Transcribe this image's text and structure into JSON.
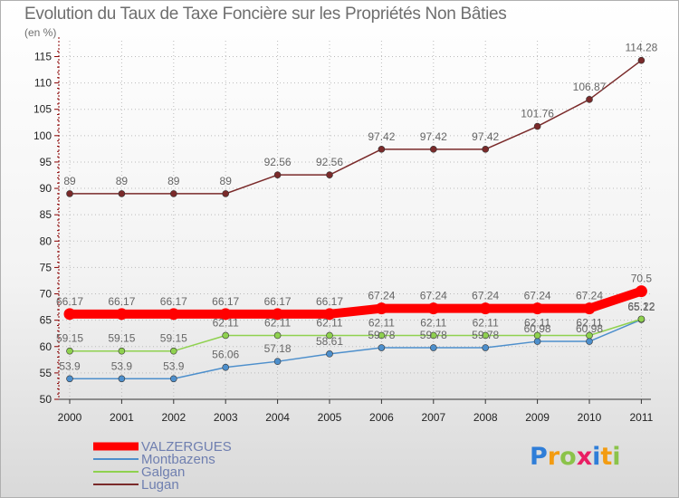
{
  "title": "Evolution du Taux de Taxe Foncière sur les Propriétés Non Bâties",
  "subtitle": "(en %)",
  "brand": {
    "text": "Proxiti",
    "letters": [
      {
        "ch": "P",
        "color": "#2f7ed8"
      },
      {
        "ch": "r",
        "color": "#f39c12"
      },
      {
        "ch": "o",
        "color": "#8bc34a"
      },
      {
        "ch": "x",
        "color": "#e91e63"
      },
      {
        "ch": "i",
        "color": "#2f7ed8"
      },
      {
        "ch": "t",
        "color": "#f39c12"
      },
      {
        "ch": "i",
        "color": "#8bc34a"
      }
    ]
  },
  "chart_data": {
    "type": "line",
    "title": "Evolution du Taux de Taxe Foncière sur les Propriétés Non Bâties",
    "ylabel": "(en %)",
    "xlabel": "",
    "ylim": [
      50,
      115
    ],
    "yticks": [
      50,
      55,
      60,
      65,
      70,
      75,
      80,
      85,
      90,
      95,
      100,
      105,
      110,
      115
    ],
    "categories": [
      "2000",
      "2001",
      "2002",
      "2003",
      "2004",
      "2005",
      "2006",
      "2007",
      "2008",
      "2009",
      "2010",
      "2011"
    ],
    "series": [
      {
        "name": "VALZERGUES",
        "color": "#ff0000",
        "values": [
          66.17,
          66.17,
          66.17,
          66.17,
          66.17,
          66.17,
          67.24,
          67.24,
          67.24,
          67.24,
          67.24,
          70.5
        ],
        "labels": [
          "66.17",
          "66.17",
          "66.17",
          "66.17",
          "66.17",
          "66.17",
          "67.24",
          "67.24",
          "67.24",
          "67.24",
          "67.24",
          "70.5"
        ]
      },
      {
        "name": "Montbazens",
        "color": "#4d8fcc",
        "values": [
          53.9,
          53.9,
          53.9,
          56.06,
          57.18,
          58.61,
          59.78,
          59.78,
          59.78,
          60.98,
          60.98,
          65.12
        ],
        "labels": [
          "53.9",
          "53.9",
          "53.9",
          "56.06",
          "57.18",
          "58.61",
          "59.78",
          "59.78",
          "59.78",
          "60.98",
          "60.98",
          "65.12"
        ]
      },
      {
        "name": "Galgan",
        "color": "#8fd14f",
        "values": [
          59.15,
          59.15,
          59.15,
          62.11,
          62.11,
          62.11,
          62.11,
          62.11,
          62.11,
          62.11,
          62.11,
          65.22
        ],
        "labels": [
          "59.15",
          "59.15",
          "59.15",
          "62.11",
          "62.11",
          "62.11",
          "62.11",
          "62.11",
          "62.11",
          "62.11",
          "62.11",
          "65.22"
        ]
      },
      {
        "name": "Lugan",
        "color": "#7a2a2a",
        "values": [
          89,
          89,
          89,
          89,
          92.56,
          92.56,
          97.42,
          97.42,
          97.42,
          101.76,
          106.87,
          114.28
        ],
        "labels": [
          "89",
          "89",
          "89",
          "89",
          "92.56",
          "92.56",
          "97.42",
          "97.42",
          "97.42",
          "101.76",
          "106.87",
          "114.28"
        ]
      }
    ],
    "legend_position": "bottom-left"
  }
}
